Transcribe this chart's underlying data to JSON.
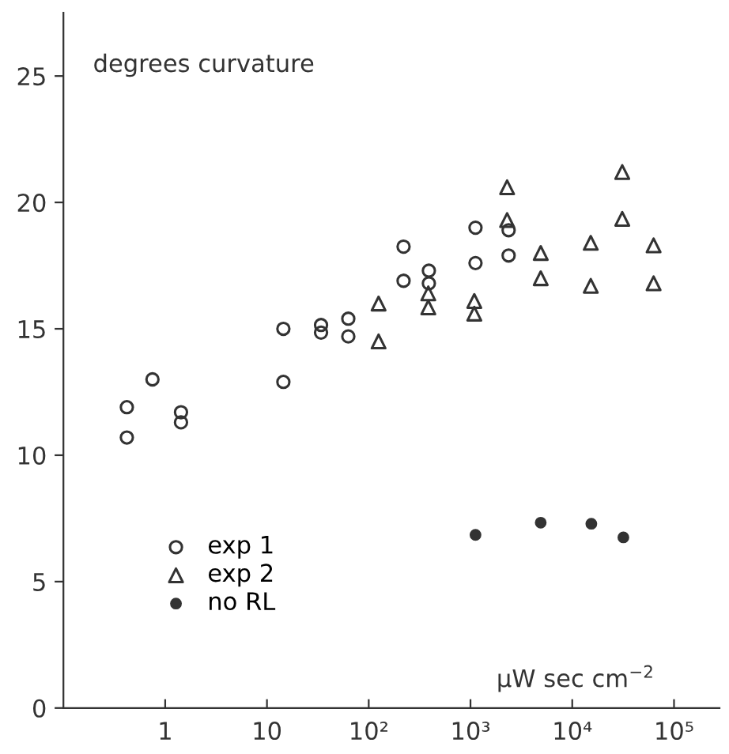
{
  "chart_data": {
    "type": "scatter",
    "ylabel": "degrees curvature",
    "xlabel": "µW sec cm$^{−2}$",
    "log": "x",
    "xlim": [
      0.1,
      280000
    ],
    "ylim": [
      0,
      27.5
    ],
    "xticks": [
      1,
      10,
      {
        "value": 100,
        "label": "10²"
      },
      {
        "value": 1000,
        "label": "10³"
      },
      {
        "value": 10000,
        "label": "10⁴"
      },
      {
        "value": 100000,
        "label": "10⁵"
      }
    ],
    "yticks": [
      0,
      5,
      10,
      15,
      20,
      25
    ],
    "grid": false,
    "legend": "bottom left",
    "series": [
      {
        "name": "exp 1",
        "marker": "circle",
        "color": "#333333",
        "x": [
          0.42,
          0.42,
          0.75,
          1.43,
          1.43,
          14.5,
          14.5,
          34,
          34,
          63,
          63,
          220,
          220,
          390,
          390,
          1120,
          1120,
          2370,
          2370
        ],
        "values": [
          11.9,
          10.7,
          13.0,
          11.7,
          11.3,
          15.0,
          12.9,
          15.15,
          14.85,
          15.4,
          14.7,
          18.25,
          16.9,
          17.3,
          16.8,
          19.0,
          17.6,
          18.9,
          17.9
        ]
      },
      {
        "name": "exp 2",
        "marker": "triangle",
        "color": "#333333",
        "x": [
          125,
          125,
          385,
          385,
          1090,
          1090,
          2290,
          2290,
          4900,
          4900,
          15200,
          15200,
          31000,
          31000,
          63000,
          63000
        ],
        "values": [
          16.0,
          14.5,
          16.4,
          15.85,
          16.1,
          15.6,
          20.6,
          19.3,
          18.0,
          17.0,
          18.4,
          16.7,
          21.2,
          19.35,
          18.3,
          16.8
        ]
      },
      {
        "name": "no RL",
        "marker": "dot",
        "color": "#333333",
        "x": [
          1120,
          4900,
          15400,
          31800
        ],
        "values": [
          6.85,
          7.33,
          7.29,
          6.75
        ]
      }
    ]
  }
}
